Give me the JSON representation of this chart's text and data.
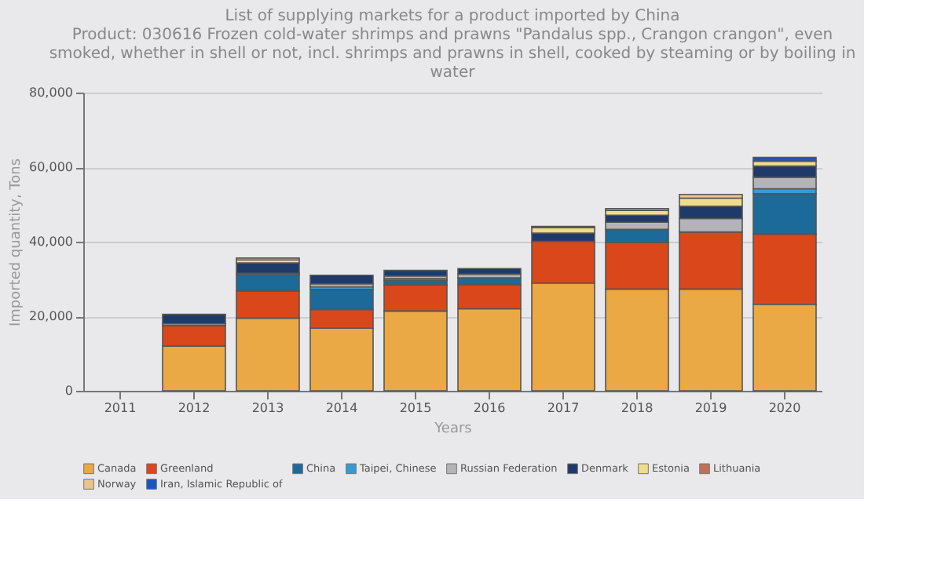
{
  "chart_data": {
    "type": "bar",
    "stacked": true,
    "title": [
      "List of supplying markets for a product imported by China",
      "Product: 030616 Frozen cold-water shrimps and prawns \"Pandalus spp., Crangon crangon\", even",
      "smoked, whether in shell or not, incl. shrimps and prawns in shell, cooked by steaming or by boiling in",
      "water"
    ],
    "xlabel": "Years",
    "ylabel": "Imported quantity, Tons",
    "categories": [
      "2011",
      "2012",
      "2013",
      "2014",
      "2015",
      "2016",
      "2017",
      "2018",
      "2019",
      "2020"
    ],
    "ylim": [
      0,
      80000
    ],
    "yticks": [
      0,
      {
        "value": 20000,
        "label": "20,000"
      },
      {
        "value": 40000,
        "label": "40,000"
      },
      {
        "value": 60000,
        "label": "60,000"
      },
      {
        "value": 80000,
        "label": "80,000"
      }
    ],
    "grid": "y",
    "legend": "bottom",
    "series": [
      {
        "name": "Canada",
        "color": "#eba945",
        "values": [
          null,
          12000,
          19500,
          16800,
          21400,
          22000,
          28900,
          27300,
          27300,
          23200
        ]
      },
      {
        "name": "Greenland",
        "color": "#d9471a",
        "values": [
          null,
          5500,
          7300,
          5000,
          7000,
          6500,
          11200,
          12500,
          15300,
          18800
        ]
      },
      {
        "name": "China",
        "color": "#1b6a9a",
        "values": [
          null,
          null,
          4300,
          5400,
          1200,
          1800,
          null,
          3500,
          null,
          10900
        ]
      },
      {
        "name": "Taipei, Chinese",
        "color": "#3a9ad0",
        "values": [
          null,
          null,
          400,
          700,
          500,
          null,
          null,
          null,
          null,
          1300
        ]
      },
      {
        "name": "Russian Federation",
        "color": "#b4b4b8",
        "values": [
          null,
          500,
          null,
          800,
          700,
          1000,
          null,
          1900,
          3600,
          3100
        ]
      },
      {
        "name": "Denmark",
        "color": "#1f3a68",
        "values": [
          null,
          2500,
          2800,
          2300,
          1500,
          1500,
          2200,
          1900,
          3300,
          3000
        ]
      },
      {
        "name": "Estonia",
        "color": "#f0dc8c",
        "values": [
          null,
          null,
          800,
          null,
          null,
          null,
          1500,
          1300,
          2200,
          1300
        ]
      },
      {
        "name": "Lithuania",
        "color": "#c0705a",
        "values": [
          null,
          null,
          null,
          null,
          null,
          null,
          null,
          null,
          null,
          null
        ]
      },
      {
        "name": "Norway",
        "color": "#e8c48e",
        "values": [
          null,
          null,
          500,
          null,
          null,
          null,
          300,
          500,
          1000,
          null
        ]
      },
      {
        "name": "Iran, Islamic Republic of",
        "color": "#1a55c0",
        "values": [
          null,
          null,
          null,
          null,
          null,
          null,
          null,
          null,
          null,
          1000
        ]
      }
    ]
  }
}
